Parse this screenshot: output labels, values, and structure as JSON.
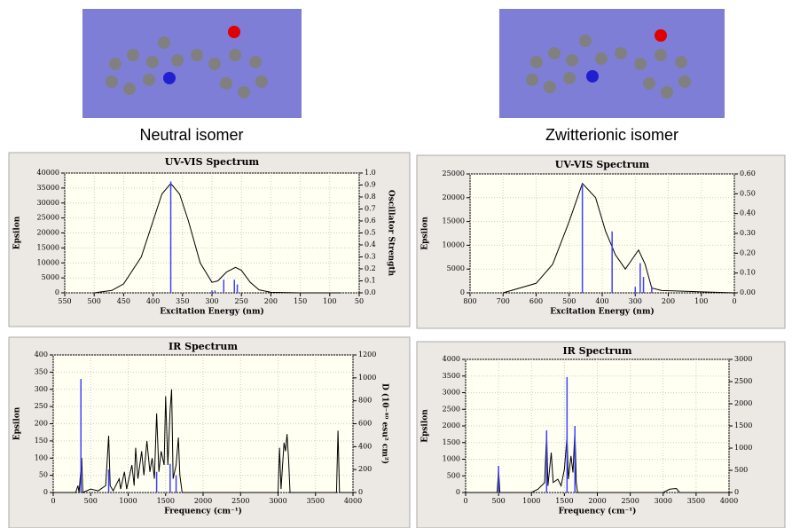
{
  "captions": [
    "Neutral isomer",
    "Zwitterionic isomer"
  ],
  "chart_data": [
    {
      "type": "line",
      "title": "UV-VIS Spectrum",
      "x_label": "Excitation Energy (nm)",
      "y_label": "Epsilon",
      "y2_label": "Oscillator Strength",
      "xlim": [
        550,
        50
      ],
      "xticks": [
        550,
        500,
        450,
        400,
        350,
        300,
        250,
        200,
        150,
        100,
        50
      ],
      "ylim": [
        0,
        40000
      ],
      "yticks": [
        0,
        5000,
        10000,
        15000,
        20000,
        25000,
        30000,
        35000,
        40000
      ],
      "y2lim": [
        0,
        1
      ],
      "y2ticks": [
        {
          "value": 0,
          "label": "0.0"
        },
        0.1,
        0.2,
        0.3,
        0.4,
        0.5,
        0.6,
        0.7,
        0.8,
        0.9,
        {
          "value": 1,
          "label": "1.0"
        }
      ],
      "series": [
        {
          "kind": "curve",
          "color": "#000000",
          "x": [
            500,
            470,
            450,
            420,
            400,
            385,
            370,
            355,
            340,
            320,
            300,
            290,
            275,
            260,
            250,
            235,
            220,
            200,
            150,
            80
          ],
          "values": [
            0,
            800,
            3000,
            12000,
            24000,
            33000,
            36500,
            33000,
            24000,
            10000,
            3500,
            4000,
            7000,
            8500,
            7500,
            3500,
            1000,
            200,
            0,
            0
          ]
        },
        {
          "kind": "stick",
          "axis": "y2",
          "color": "#4040ff",
          "x": [
            370,
            300,
            295,
            280,
            262,
            257
          ],
          "values": [
            0.93,
            0.02,
            0.02,
            0.11,
            0.11,
            0.07
          ]
        }
      ]
    },
    {
      "type": "line",
      "title": "UV-VIS Spectrum",
      "x_label": "Excitation Energy (nm)",
      "y_label": "Epsilon",
      "xlim": [
        800,
        0
      ],
      "xticks": [
        800,
        700,
        600,
        500,
        400,
        300,
        200,
        100,
        0
      ],
      "ylim": [
        0,
        25000
      ],
      "yticks": [
        0,
        5000,
        10000,
        15000,
        20000,
        25000
      ],
      "y2lim": [
        0,
        0.6
      ],
      "y2ticks": [
        {
          "value": 0,
          "label": "0.00"
        },
        {
          "value": 0.1,
          "label": "0.10"
        },
        {
          "value": 0.2,
          "label": "0.20"
        },
        {
          "value": 0.3,
          "label": "0.30"
        },
        {
          "value": 0.4,
          "label": "0.40"
        },
        {
          "value": 0.5,
          "label": "0.50"
        },
        {
          "value": 0.6,
          "label": "0.60"
        }
      ],
      "series": [
        {
          "kind": "curve",
          "color": "#000000",
          "x": [
            700,
            600,
            550,
            500,
            460,
            420,
            390,
            360,
            330,
            310,
            290,
            270,
            250,
            220,
            100,
            0
          ],
          "values": [
            0,
            2000,
            6000,
            15000,
            23000,
            20000,
            13000,
            8000,
            5000,
            7000,
            9000,
            6000,
            1000,
            500,
            200,
            0
          ]
        },
        {
          "kind": "stick",
          "axis": "y2",
          "color": "#4040ff",
          "x": [
            460,
            370,
            300,
            285,
            275,
            250
          ],
          "values": [
            0.55,
            0.31,
            0.03,
            0.15,
            0.08,
            0.03
          ]
        }
      ]
    },
    {
      "type": "line",
      "title": "IR Spectrum",
      "x_label": "Frequency (cm⁻¹)",
      "y_label": "Epsilon",
      "y2_label": "D (10⁻⁴⁰ esu² cm²)",
      "xlim": [
        0,
        4000
      ],
      "xticks": [
        0,
        500,
        1000,
        1500,
        2000,
        2500,
        3000,
        3500,
        4000
      ],
      "ylim": [
        0,
        400
      ],
      "yticks": [
        0,
        50,
        100,
        150,
        200,
        250,
        300,
        350,
        400
      ],
      "y2lim": [
        0,
        1200
      ],
      "y2ticks": [
        0,
        200,
        400,
        600,
        800,
        1000,
        1200
      ],
      "series": [
        {
          "kind": "curve",
          "color": "#000000",
          "x": [
            0,
            300,
            330,
            345,
            380,
            395,
            500,
            600,
            700,
            740,
            760,
            800,
            880,
            900,
            950,
            980,
            1050,
            1080,
            1100,
            1130,
            1180,
            1210,
            1250,
            1290,
            1320,
            1350,
            1380,
            1410,
            1440,
            1480,
            1500,
            1530,
            1560,
            1580,
            1600,
            1640,
            1670,
            1690,
            1720,
            3000,
            3020,
            3040,
            3080,
            3100,
            3120,
            3140,
            3160,
            3780,
            3800,
            3820,
            4000
          ],
          "values": [
            0,
            0,
            20,
            0,
            100,
            0,
            10,
            5,
            20,
            165,
            20,
            5,
            40,
            10,
            60,
            10,
            80,
            20,
            130,
            40,
            120,
            50,
            150,
            60,
            100,
            40,
            230,
            60,
            120,
            80,
            280,
            80,
            240,
            300,
            40,
            80,
            160,
            50,
            0,
            0,
            130,
            10,
            145,
            120,
            170,
            100,
            0,
            0,
            180,
            0,
            0
          ]
        },
        {
          "kind": "stick",
          "axis": "y2",
          "color": "#4040ff",
          "x": [
            370,
            740,
            1380,
            1560,
            1640
          ],
          "values": [
            990,
            200,
            180,
            250,
            150
          ]
        }
      ]
    },
    {
      "type": "line",
      "title": "IR Spectrum",
      "x_label": "Frequency (cm⁻¹)",
      "y_label": "Epsilon",
      "xlim": [
        0,
        4000
      ],
      "xticks": [
        0,
        500,
        1000,
        1500,
        2000,
        2500,
        3000,
        3500,
        4000
      ],
      "ylim": [
        0,
        4000
      ],
      "yticks": [
        0,
        500,
        1000,
        1500,
        2000,
        2500,
        3000,
        3500,
        4000
      ],
      "y2lim": [
        0,
        3000
      ],
      "y2ticks": [
        0,
        500,
        1000,
        1500,
        2000,
        2500,
        3000
      ],
      "series": [
        {
          "kind": "curve",
          "color": "#000000",
          "x": [
            0,
            480,
            500,
            520,
            1000,
            1100,
            1200,
            1230,
            1250,
            1300,
            1330,
            1400,
            1450,
            1500,
            1540,
            1560,
            1600,
            1630,
            1660,
            1680,
            1700,
            3000,
            3100,
            3200,
            3250,
            4000
          ],
          "values": [
            0,
            0,
            700,
            0,
            0,
            100,
            300,
            1800,
            200,
            1200,
            300,
            400,
            200,
            700,
            1700,
            400,
            1100,
            600,
            1900,
            300,
            0,
            0,
            100,
            120,
            0,
            0
          ]
        },
        {
          "kind": "stick",
          "axis": "y2",
          "color": "#4040ff",
          "x": [
            500,
            1230,
            1540,
            1660
          ],
          "values": [
            600,
            1400,
            2600,
            1500
          ]
        }
      ]
    }
  ]
}
